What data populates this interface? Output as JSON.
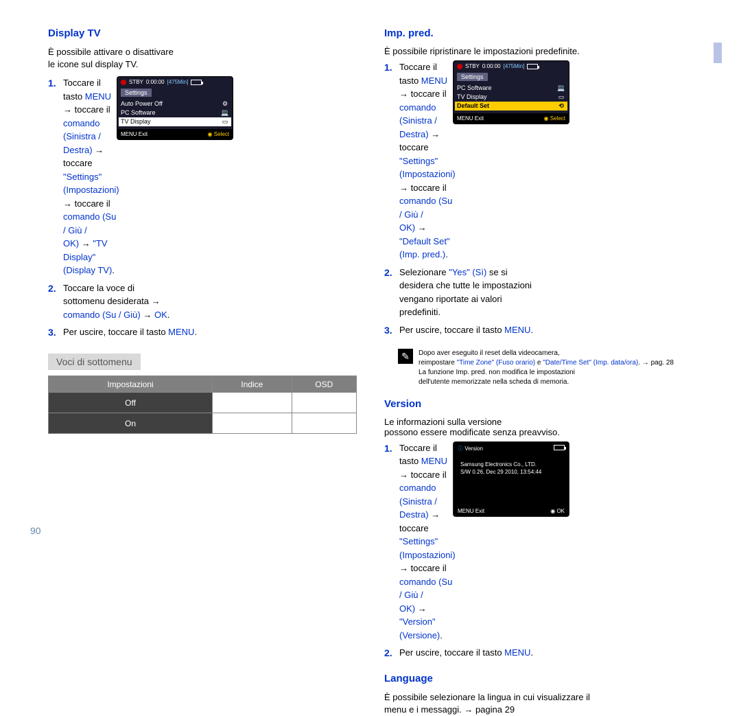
{
  "page_number": "90",
  "left": {
    "title": "Display TV",
    "intro1": "È possibile attivare o disattivare",
    "intro2": "le icone sul display TV.",
    "steps": [
      {
        "n": "1.",
        "lines": [
          "Toccare il tasto <span>MENU</span> → toccare il",
          "<span class='cmd'>comando (Sinistra / Destra)</span> → toccare",
          "<span class='cmd'>\"Settings\" (Impostazioni)</span> → toccare il",
          "<span class='cmd'>comando (Su / Giù /</span>",
          "<span class='cmd'>OK)</span> → <span class='cmd'>\"TV Display\" (Display TV)</span>."
        ]
      },
      {
        "n": "2.",
        "lines": [
          "Toccare la voce di",
          "sottomenu desiderata →",
          "<span class='cmd'>comando (Su / Giù)</span> → <span class='cmd'>OK</span>."
        ]
      },
      {
        "n": "3.",
        "lines": [
          "Per uscire, toccare il tasto <span>MENU</span>."
        ]
      }
    ],
    "lcd": {
      "rec": "STBY",
      "time": "0:00:00",
      "remain": "[475Min]",
      "panel": "Settings",
      "items": [
        {
          "label": "Auto Power Off",
          "icon": "⚙"
        },
        {
          "label": "PC Software",
          "icon": "💻"
        },
        {
          "label": "TV Display",
          "icon": "▭",
          "sel": true
        }
      ],
      "exit": "Exit",
      "select": "Select"
    },
    "submenu_label": "Voci di sottomenu",
    "table": {
      "headers": [
        "Impostazioni",
        "Indice",
        "OSD"
      ],
      "rows": [
        [
          "Off",
          "",
          ""
        ],
        [
          "On",
          "",
          ""
        ]
      ]
    }
  },
  "right": {
    "s1_title": "Imp. pred.",
    "s1_intro": "È possibile ripristinare le impostazioni predefinite.",
    "s1_steps": [
      {
        "n": "1.",
        "lines": [
          "Toccare il tasto <span>MENU</span> → toccare il",
          "<span class='cmd'>comando (Sinistra / Destra)</span> → toccare",
          "<span class='cmd'>\"Settings\" (Impostazioni)</span> → toccare il",
          "<span class='cmd'>comando (Su / Giù /</span>",
          "<span class='cmd'>OK)</span> → <span class='cmd'>\"Default Set\" (Imp. pred.)</span>."
        ]
      },
      {
        "n": "2.",
        "lines": [
          "Selezionare <span class='cmd'>\"Yes\" (Sì)</span> se si",
          "desidera che tutte le impostazioni",
          "vengano riportate ai valori",
          "predefiniti."
        ]
      },
      {
        "n": "3.",
        "lines": [
          "Per uscire, toccare il tasto <span>MENU</span>."
        ]
      }
    ],
    "lcd1": {
      "rec": "STBY",
      "time": "0:00:00",
      "remain": "[475Min]",
      "panel": "Settings",
      "items": [
        {
          "label": "PC Software",
          "icon": "💻"
        },
        {
          "label": "TV Display",
          "icon": "▭"
        },
        {
          "label": "Default Set",
          "icon": "⟲",
          "selorange": true
        }
      ],
      "exit": "Exit",
      "select": "Select"
    },
    "note": {
      "lines": [
        "Dopo aver eseguito il reset della videocamera,",
        "reimpostare <span class='cmd'>\"Time Zone\" (Fuso orario)</span> e <span class='cmd'>\"Date/Time Set\" (Imp. data/ora)</span>. → pag. 28",
        "La funzione Imp. pred. non modifica le impostazioni",
        "dell'utente memorizzate nella scheda di memoria."
      ]
    },
    "s2_title": "Version",
    "s2_intro1": "Le informazioni sulla versione",
    "s2_intro2": "possono essere modificate senza preavviso.",
    "s2_steps": [
      {
        "n": "1.",
        "lines": [
          "Toccare il tasto <span>MENU</span> → toccare il",
          "<span class='cmd'>comando (Sinistra / Destra)</span> → toccare",
          "<span class='cmd'>\"Settings\" (Impostazioni)</span> → toccare il",
          "<span class='cmd'>comando (Su / Giù /</span>",
          "<span class='cmd'>OK)</span> → <span class='cmd'>\"Version\" (Versione)</span>."
        ]
      },
      {
        "n": "2.",
        "lines": [
          "Per uscire, toccare il tasto <span>MENU</span>."
        ]
      }
    ],
    "lcd2": {
      "title": "Version",
      "line1": "Samsung Electronics Co., LTD.",
      "line2": "S/W 0.26, Dec 29 2010, 13:54:44",
      "exit": "Exit",
      "ok": "OK"
    },
    "s3_title": "Language",
    "s3_intro1": "È possibile selezionare la lingua in cui visualizzare il",
    "s3_intro2": "menu e i messaggi.  → pagina 29"
  }
}
